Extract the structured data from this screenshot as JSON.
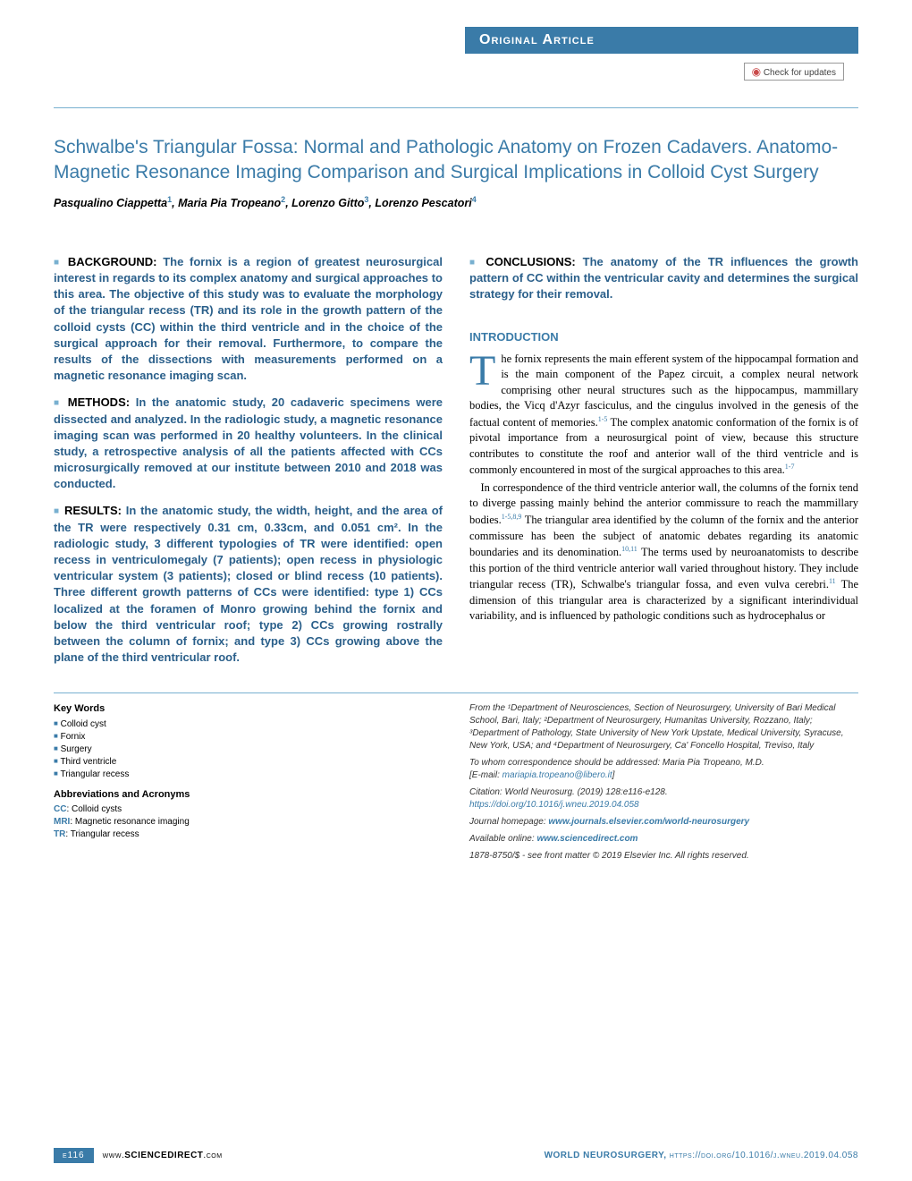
{
  "header": {
    "band_label": "Original Article",
    "check_updates": "Check for updates"
  },
  "title": "Schwalbe's Triangular Fossa: Normal and Pathologic Anatomy on Frozen Cadavers. Anatomo-Magnetic Resonance Imaging Comparison and Surgical Implications in Colloid Cyst Surgery",
  "authors": [
    {
      "name": "Pasqualino Ciappetta",
      "aff": "1"
    },
    {
      "name": "Maria Pia Tropeano",
      "aff": "2"
    },
    {
      "name": "Lorenzo Gitto",
      "aff": "3"
    },
    {
      "name": "Lorenzo Pescatori",
      "aff": "4"
    }
  ],
  "abstract": {
    "background": {
      "head": "BACKGROUND:",
      "text": "The fornix is a region of greatest neurosurgical interest in regards to its complex anatomy and surgical approaches to this area. The objective of this study was to evaluate the morphology of the triangular recess (TR) and its role in the growth pattern of the colloid cysts (CC) within the third ventricle and in the choice of the surgical approach for their removal. Furthermore, to compare the results of the dissections with measurements performed on a magnetic resonance imaging scan."
    },
    "methods": {
      "head": "METHODS:",
      "text": "In the anatomic study, 20 cadaveric specimens were dissected and analyzed. In the radiologic study, a magnetic resonance imaging scan was performed in 20 healthy volunteers. In the clinical study, a retrospective analysis of all the patients affected with CCs microsurgically removed at our institute between 2010 and 2018 was conducted."
    },
    "results": {
      "head": "RESULTS:",
      "text": "In the anatomic study, the width, height, and the area of the TR were respectively 0.31 cm, 0.33cm, and 0.051 cm². In the radiologic study, 3 different typologies of TR were identified: open recess in ventriculomegaly (7 patients); open recess in physiologic ventricular system (3 patients); closed or blind recess (10 patients). Three different growth patterns of CCs were identified: type 1) CCs localized at the foramen of Monro growing behind the fornix and below the third ventricular roof; type 2) CCs growing rostrally between the column of fornix; and type 3) CCs growing above the plane of the third ventricular roof."
    },
    "conclusions": {
      "head": "CONCLUSIONS:",
      "text": "The anatomy of the TR influences the growth pattern of CC within the ventricular cavity and determines the surgical strategy for their removal."
    }
  },
  "intro": {
    "head": "INTRODUCTION",
    "dropcap": "T",
    "para1": "he fornix represents the main efferent system of the hippocampal formation and is the main component of the Papez circuit, a complex neural network comprising other neural structures such as the hippocampus, mammillary bodies, the Vicq d'Azyr fasciculus, and the cingulus involved in the genesis of the factual content of memories.",
    "ref1": "1-5",
    "para1b": " The complex anatomic conformation of the fornix is of pivotal importance from a neurosurgical point of view, because this structure contributes to constitute the roof and anterior wall of the third ventricle and is commonly encountered in most of the surgical approaches to this area.",
    "ref1b": "1-7",
    "para2": "In correspondence of the third ventricle anterior wall, the columns of the fornix tend to diverge passing mainly behind the anterior commissure to reach the mammillary bodies.",
    "ref2": "1-5,8,9",
    "para2b": " The triangular area identified by the column of the fornix and the anterior commissure has been the subject of anatomic debates regarding its anatomic boundaries and its denomination.",
    "ref2b": "10,11",
    "para2c": " The terms used by neuroanatomists to describe this portion of the third ventricle anterior wall varied throughout history. They include triangular recess (TR), Schwalbe's triangular fossa, and even vulva cerebri.",
    "ref2c": "11",
    "para2d": " The dimension of this triangular area is characterized by a significant interindividual variability, and is influenced by pathologic conditions such as hydrocephalus or"
  },
  "keywords": {
    "head": "Key Words",
    "items": [
      "Colloid cyst",
      "Fornix",
      "Surgery",
      "Third ventricle",
      "Triangular recess"
    ]
  },
  "abbreviations": {
    "head": "Abbreviations and Acronyms",
    "items": [
      {
        "abbr": "CC",
        "def": "Colloid cysts"
      },
      {
        "abbr": "MRI",
        "def": "Magnetic resonance imaging"
      },
      {
        "abbr": "TR",
        "def": "Triangular recess"
      }
    ]
  },
  "affiliations": "From the ¹Department of Neurosciences, Section of Neurosurgery, University of Bari Medical School, Bari, Italy; ²Department of Neurosurgery, Humanitas University, Rozzano, Italy; ³Department of Pathology, State University of New York Upstate, Medical University, Syracuse, New York, USA; and ⁴Department of Neurosurgery, Ca' Foncello Hospital, Treviso, Italy",
  "correspondence": {
    "text": "To whom correspondence should be addressed: Maria Pia Tropeano, M.D.",
    "email_label": "[E-mail: ",
    "email": "mariapia.tropeano@libero.it",
    "email_close": "]"
  },
  "citation": "Citation: World Neurosurg. (2019) 128:e116-e128.",
  "doi": "https://doi.org/10.1016/j.wneu.2019.04.058",
  "homepage_label": "Journal homepage: ",
  "homepage": "www.journals.elsevier.com/world-neurosurgery",
  "available_label": "Available online: ",
  "available": "www.sciencedirect.com",
  "copyright": "1878-8750/$ - see front matter © 2019 Elsevier Inc. All rights reserved.",
  "footer": {
    "page": "e116",
    "sd_prefix": "www.",
    "sd": "SCIENCEDIRECT",
    "sd_suffix": ".com",
    "journal": "WORLD NEUROSURGERY, ",
    "doi": "https://doi.org/10.1016/j.wneu.2019.04.058"
  },
  "colors": {
    "primary": "#3a7ba8",
    "light": "#78b0d0",
    "abstract_text": "#2a5f8a"
  }
}
